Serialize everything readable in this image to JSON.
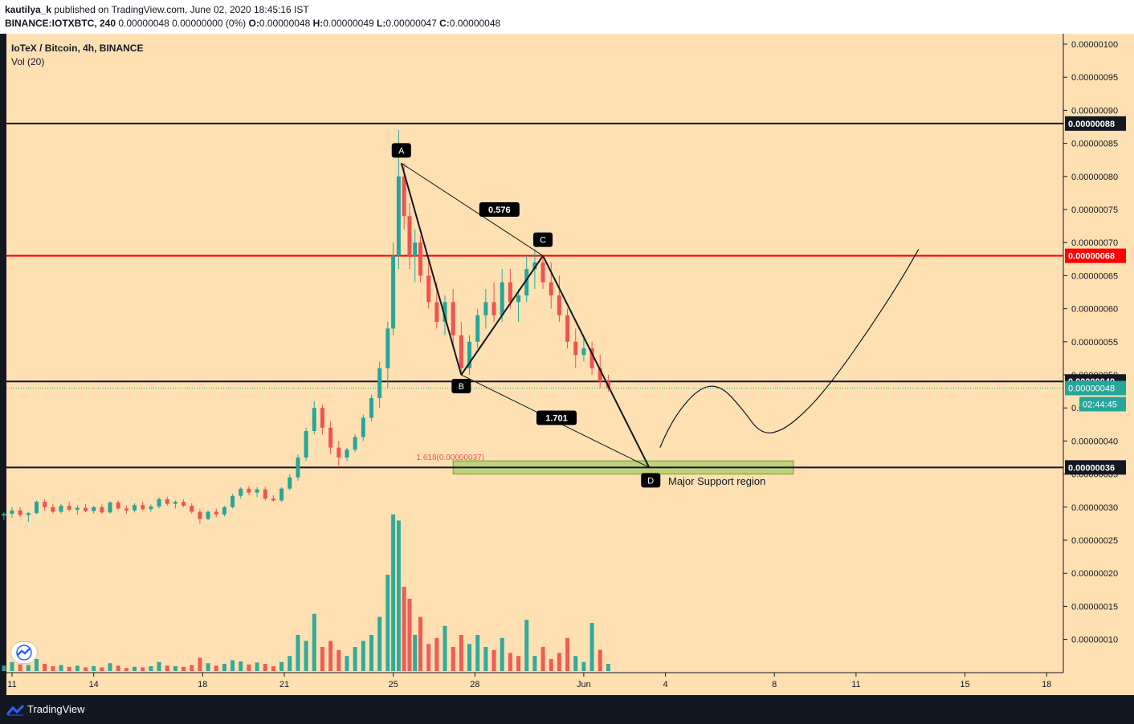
{
  "header": {
    "publisher": "kautilya_k",
    "published_text": "published on TradingView.com, June 02, 2020 18:45:16 IST",
    "symbol": "BINANCE:IOTXBTC, 240",
    "change": "0.00000048 0.00000000 (0%)",
    "o_label": "O:",
    "o_value": "0.00000048",
    "h_label": "H:",
    "h_value": "0.00000049",
    "l_label": "L:",
    "l_value": "0.00000047",
    "c_label": "C:",
    "c_value": "0.00000048"
  },
  "legend": {
    "title": "IoTeX / Bitcoin, 4h, BINANCE",
    "volume": "Vol (20)"
  },
  "footer": {
    "brand": "TradingView"
  },
  "colors": {
    "background": "#ffe0b2",
    "up": "#26a69a",
    "down": "#ef5350",
    "red_line": "#ff0000",
    "support_zone": "#8bc34a",
    "text_dark": "#131722"
  },
  "chart_data": {
    "type": "candlestick",
    "title": "IoTeX / Bitcoin, 4h, BINANCE",
    "ylim": [
      6.5e-08,
      1.02e-07
    ],
    "y_ticks": [
      "0.00000100",
      "0.00000095",
      "0.00000090",
      "0.00000085",
      "0.00000080",
      "0.00000075",
      "0.00000070",
      "0.00000065",
      "0.00000060",
      "0.00000055",
      "0.00000050",
      "0.00000045",
      "0.00000040",
      "0.00000035",
      "0.00000030",
      "0.00000025",
      "0.00000020",
      "0.00000015",
      "0.00000010"
    ],
    "y_tick_values": [
      100,
      95,
      90,
      85,
      80,
      75,
      70,
      65,
      60,
      55,
      50,
      45,
      40,
      35,
      30,
      25,
      20,
      15,
      10
    ],
    "x_ticks": [
      "11",
      "14",
      "18",
      "21",
      "25",
      "28",
      "Jun",
      "4",
      "8",
      "11",
      "15",
      "18"
    ],
    "x_tick_days": [
      11,
      14,
      18,
      21,
      25,
      28,
      32,
      35,
      39,
      42,
      46,
      49
    ],
    "horizontal_levels": [
      {
        "value": 88,
        "label": "0.00000088",
        "color": "#131722"
      },
      {
        "value": 68,
        "label": "0.00000068",
        "color": "#ff0000"
      },
      {
        "value": 49,
        "label": "0.00000049",
        "color": "#131722"
      },
      {
        "value": 36,
        "label": "0.00000036",
        "color": "#131722"
      }
    ],
    "current_price": {
      "value": 48,
      "label": "0.00000048",
      "countdown": "02:44:45"
    },
    "harmonic": {
      "points": [
        {
          "label": "A",
          "day": 25.3,
          "price": 82
        },
        {
          "label": "B",
          "day": 27.5,
          "price": 50
        },
        {
          "label": "C",
          "day": 30.5,
          "price": 68
        },
        {
          "label": "D",
          "day": 34.4,
          "price": 36
        }
      ],
      "ratios": [
        {
          "text": "0.576",
          "day": 28.9,
          "price": 75
        },
        {
          "text": "1.701",
          "day": 31.0,
          "price": 43.5
        }
      ],
      "fib_label": "1.618(0.00000037)"
    },
    "support_zone": {
      "label": "Major Support region",
      "day_start": 27.2,
      "day_end": 39.7,
      "price_low": 35,
      "price_high": 37
    },
    "projection_path": [
      [
        34.8,
        39
      ],
      [
        35.2,
        43
      ],
      [
        36.2,
        48
      ],
      [
        37.0,
        48.5
      ],
      [
        37.8,
        45
      ],
      [
        38.5,
        41
      ],
      [
        39.3,
        41.5
      ],
      [
        40.3,
        45
      ],
      [
        41.3,
        50
      ],
      [
        42.5,
        57
      ],
      [
        43.6,
        64
      ],
      [
        44.3,
        69
      ]
    ],
    "candles": [
      [
        9.8,
        28.5,
        29,
        28,
        28.8
      ],
      [
        10.1,
        28.8,
        29.5,
        28.3,
        29.2
      ],
      [
        10.4,
        29.2,
        29.8,
        28.5,
        28.7
      ],
      [
        10.7,
        28.7,
        29.3,
        28,
        29.0
      ],
      [
        11.0,
        29.0,
        30,
        28.4,
        29.5
      ],
      [
        11.3,
        29.5,
        30,
        28.5,
        28.8
      ],
      [
        11.6,
        28.8,
        29.3,
        27.8,
        29.1
      ],
      [
        11.9,
        29.1,
        31,
        28.9,
        30.8
      ],
      [
        12.2,
        30.8,
        31.2,
        29.5,
        30.0
      ],
      [
        12.5,
        30.0,
        30.5,
        29,
        29.3
      ],
      [
        12.8,
        29.3,
        30.5,
        29,
        30.2
      ],
      [
        13.1,
        30.2,
        30.8,
        29.4,
        29.6
      ],
      [
        13.4,
        29.6,
        30.3,
        28.8,
        29.9
      ],
      [
        13.7,
        29.9,
        30.5,
        29.2,
        29.4
      ],
      [
        14.0,
        29.4,
        30.2,
        29,
        30.0
      ],
      [
        14.3,
        30.0,
        30.4,
        29,
        29.2
      ],
      [
        14.6,
        29.2,
        30.9,
        29,
        30.7
      ],
      [
        14.9,
        30.7,
        31,
        29.6,
        29.8
      ],
      [
        15.2,
        29.8,
        30.2,
        29,
        29.5
      ],
      [
        15.5,
        29.5,
        30.6,
        29.2,
        30.3
      ],
      [
        15.8,
        30.3,
        30.8,
        29.5,
        29.7
      ],
      [
        16.1,
        29.7,
        30.4,
        29.3,
        30.1
      ],
      [
        16.4,
        30.1,
        31.5,
        29.8,
        31.2
      ],
      [
        16.7,
        31.2,
        31.6,
        30.2,
        30.5
      ],
      [
        17.0,
        30.5,
        31,
        29.8,
        30.8
      ],
      [
        17.3,
        30.8,
        31.2,
        30,
        30.2
      ],
      [
        17.6,
        30.2,
        30.6,
        29,
        29.3
      ],
      [
        17.9,
        29.3,
        29.7,
        27.5,
        28.2
      ],
      [
        18.2,
        28.2,
        29.5,
        28,
        29.3
      ],
      [
        18.5,
        29.3,
        29.8,
        28.5,
        28.9
      ],
      [
        18.8,
        28.9,
        30.2,
        28.6,
        30.0
      ],
      [
        19.1,
        30.0,
        32,
        29.8,
        31.7
      ],
      [
        19.4,
        31.7,
        33,
        31.3,
        32.8
      ],
      [
        19.7,
        32.8,
        33.2,
        31.8,
        32.2
      ],
      [
        20.0,
        32.2,
        33,
        31.5,
        32.7
      ],
      [
        20.3,
        32.7,
        33.1,
        31,
        31.3
      ],
      [
        20.6,
        31.3,
        31.8,
        30.8,
        31.0
      ],
      [
        20.9,
        31.0,
        33,
        30.8,
        32.8
      ],
      [
        21.2,
        32.8,
        35,
        32.5,
        34.5
      ],
      [
        21.5,
        34.5,
        38,
        34,
        37.5
      ],
      [
        21.8,
        37.5,
        42,
        37,
        41.5
      ],
      [
        22.1,
        41.5,
        46,
        41,
        45
      ],
      [
        22.4,
        45,
        45.5,
        41,
        42
      ],
      [
        22.7,
        42,
        43,
        38,
        39
      ],
      [
        23.0,
        39,
        40,
        36,
        37.5
      ],
      [
        23.3,
        37.5,
        39,
        37,
        38.7
      ],
      [
        23.6,
        38.7,
        41,
        38.3,
        40.6
      ],
      [
        23.9,
        40.6,
        44,
        40,
        43.5
      ],
      [
        24.2,
        43.5,
        47,
        43,
        46.5
      ],
      [
        24.5,
        46.5,
        52,
        45,
        51
      ],
      [
        24.8,
        51,
        58,
        48,
        57
      ],
      [
        25.0,
        57,
        70,
        56,
        68
      ],
      [
        25.2,
        68,
        87,
        66,
        80
      ],
      [
        25.4,
        80,
        82,
        72,
        74
      ],
      [
        25.6,
        74,
        76,
        66,
        68
      ],
      [
        25.8,
        68,
        72,
        64,
        70
      ],
      [
        26.0,
        70,
        71,
        64,
        65
      ],
      [
        26.3,
        65,
        68,
        60,
        61
      ],
      [
        26.6,
        61,
        64,
        57,
        58
      ],
      [
        26.9,
        58,
        62,
        56,
        61
      ],
      [
        27.2,
        61,
        63,
        54,
        56
      ],
      [
        27.5,
        56,
        58,
        50,
        51
      ],
      [
        27.8,
        51,
        56,
        50,
        55
      ],
      [
        28.1,
        55,
        60,
        54,
        59
      ],
      [
        28.4,
        59,
        63,
        57,
        61
      ],
      [
        28.7,
        61,
        64,
        58,
        59
      ],
      [
        29.0,
        59,
        66,
        58,
        64
      ],
      [
        29.3,
        64,
        66,
        60,
        61
      ],
      [
        29.6,
        61,
        63,
        58,
        62
      ],
      [
        29.9,
        62,
        68,
        61,
        66
      ],
      [
        30.2,
        66,
        69,
        63,
        67
      ],
      [
        30.5,
        67,
        68,
        63,
        64
      ],
      [
        30.8,
        64,
        67,
        60,
        62
      ],
      [
        31.1,
        62,
        65,
        58,
        59
      ],
      [
        31.4,
        59,
        60,
        54,
        55
      ],
      [
        31.7,
        55,
        57,
        51,
        53
      ],
      [
        32.0,
        53,
        56,
        52,
        54
      ],
      [
        32.3,
        54,
        55,
        50,
        51
      ],
      [
        32.6,
        51,
        53,
        48,
        49
      ],
      [
        32.9,
        49,
        50,
        47.5,
        48
      ]
    ],
    "volumes": [
      [
        9.8,
        1,
        1
      ],
      [
        10.1,
        0.8,
        1
      ],
      [
        10.4,
        1.2,
        -1
      ],
      [
        10.7,
        0.9,
        1
      ],
      [
        11.0,
        1.5,
        1
      ],
      [
        11.3,
        1.1,
        -1
      ],
      [
        11.6,
        1.0,
        1
      ],
      [
        11.9,
        2.0,
        1
      ],
      [
        12.2,
        1.2,
        -1
      ],
      [
        12.5,
        0.8,
        -1
      ],
      [
        12.8,
        1.0,
        1
      ],
      [
        13.1,
        0.7,
        -1
      ],
      [
        13.4,
        0.9,
        1
      ],
      [
        13.7,
        0.6,
        -1
      ],
      [
        14.0,
        0.8,
        1
      ],
      [
        14.3,
        0.6,
        -1
      ],
      [
        14.6,
        1.3,
        1
      ],
      [
        14.9,
        0.9,
        -1
      ],
      [
        15.2,
        0.5,
        -1
      ],
      [
        15.5,
        0.7,
        1
      ],
      [
        15.8,
        0.6,
        -1
      ],
      [
        16.1,
        0.8,
        1
      ],
      [
        16.4,
        1.5,
        1
      ],
      [
        16.7,
        0.9,
        -1
      ],
      [
        17.0,
        0.8,
        1
      ],
      [
        17.3,
        0.7,
        -1
      ],
      [
        17.6,
        1.0,
        -1
      ],
      [
        17.9,
        2.2,
        -1
      ],
      [
        18.2,
        1.3,
        1
      ],
      [
        18.5,
        0.9,
        -1
      ],
      [
        18.8,
        1.2,
        1
      ],
      [
        19.1,
        1.8,
        1
      ],
      [
        19.4,
        1.6,
        1
      ],
      [
        19.7,
        1.1,
        -1
      ],
      [
        20.0,
        1.4,
        1
      ],
      [
        20.3,
        1.2,
        -1
      ],
      [
        20.6,
        0.8,
        -1
      ],
      [
        20.9,
        1.5,
        1
      ],
      [
        21.2,
        2.5,
        1
      ],
      [
        21.5,
        6.0,
        1
      ],
      [
        21.8,
        5.0,
        1
      ],
      [
        22.1,
        9.5,
        1
      ],
      [
        22.4,
        4.0,
        -1
      ],
      [
        22.7,
        5.0,
        -1
      ],
      [
        23.0,
        3.5,
        -1
      ],
      [
        23.3,
        2.5,
        1
      ],
      [
        23.6,
        4.0,
        1
      ],
      [
        23.9,
        5.0,
        1
      ],
      [
        24.2,
        6.0,
        1
      ],
      [
        24.5,
        9.0,
        1
      ],
      [
        24.8,
        16.0,
        1
      ],
      [
        25.0,
        26.0,
        1
      ],
      [
        25.2,
        25.0,
        1
      ],
      [
        25.4,
        14.0,
        -1
      ],
      [
        25.6,
        12.0,
        -1
      ],
      [
        25.8,
        6.0,
        1
      ],
      [
        26.0,
        9.0,
        -1
      ],
      [
        26.3,
        4.5,
        -1
      ],
      [
        26.6,
        5.5,
        -1
      ],
      [
        26.9,
        7.5,
        1
      ],
      [
        27.2,
        4.0,
        -1
      ],
      [
        27.5,
        6.0,
        -1
      ],
      [
        27.8,
        4.5,
        1
      ],
      [
        28.1,
        6.0,
        1
      ],
      [
        28.4,
        4.0,
        1
      ],
      [
        28.7,
        3.5,
        -1
      ],
      [
        29.0,
        5.5,
        1
      ],
      [
        29.3,
        3.0,
        -1
      ],
      [
        29.6,
        2.5,
        -1
      ],
      [
        29.9,
        8.5,
        1
      ],
      [
        30.2,
        2.5,
        1
      ],
      [
        30.5,
        4.0,
        -1
      ],
      [
        30.8,
        2.0,
        -1
      ],
      [
        31.1,
        3.0,
        -1
      ],
      [
        31.4,
        5.5,
        -1
      ],
      [
        31.7,
        2.5,
        1
      ],
      [
        32.0,
        1.5,
        1
      ],
      [
        32.3,
        8.0,
        1
      ],
      [
        32.6,
        3.5,
        -1
      ],
      [
        32.9,
        1.2,
        1
      ]
    ]
  }
}
